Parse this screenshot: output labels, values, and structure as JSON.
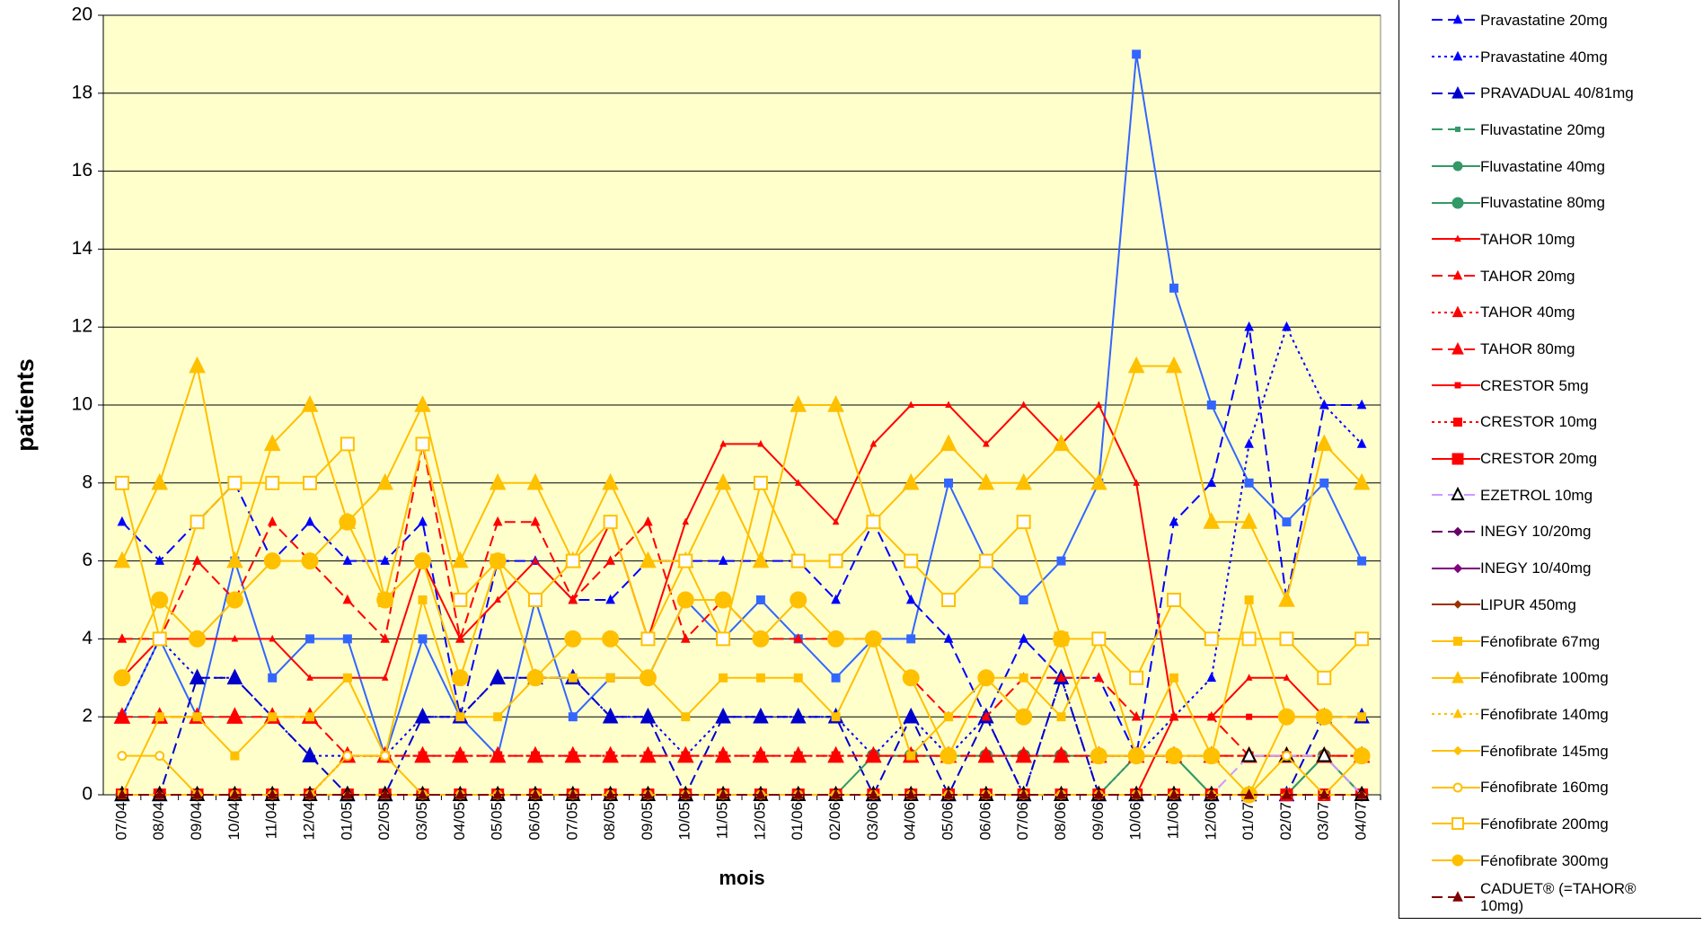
{
  "chart_data": {
    "type": "line",
    "x_label": "mois",
    "y_label": "patients",
    "categories": [
      "07/04",
      "08/04",
      "09/04",
      "10/04",
      "11/04",
      "12/04",
      "01/05",
      "02/05",
      "03/05",
      "04/05",
      "05/05",
      "06/05",
      "07/05",
      "08/05",
      "09/05",
      "10/05",
      "11/05",
      "12/05",
      "01/06",
      "02/06",
      "03/06",
      "04/06",
      "05/06",
      "06/06",
      "07/06",
      "08/06",
      "09/06",
      "10/06",
      "11/06",
      "12/06",
      "01/07",
      "02/07",
      "03/07",
      "04/07"
    ],
    "ylim": [
      0,
      20
    ],
    "yticks": [
      0,
      2,
      4,
      6,
      8,
      10,
      12,
      14,
      16,
      18,
      20
    ],
    "grid": true,
    "series": [
      {
        "name": null,
        "color": "#3366ff",
        "dash": "solid",
        "marker": "square",
        "marker_size": 9,
        "values": [
          2,
          4,
          2,
          6,
          3,
          4,
          4,
          1,
          4,
          2,
          1,
          5,
          2,
          3,
          3,
          5,
          4,
          5,
          4,
          3,
          4,
          4,
          8,
          6,
          5,
          6,
          8,
          19,
          13,
          10,
          8,
          7,
          8,
          6
        ]
      },
      {
        "name": "Pravastatine 20mg",
        "color": "#0000ff",
        "dash": "dash",
        "marker": "triangle",
        "marker_size": 9,
        "values": [
          7,
          6,
          7,
          8,
          6,
          7,
          6,
          6,
          7,
          2,
          6,
          6,
          5,
          5,
          6,
          6,
          6,
          6,
          6,
          5,
          7,
          5,
          4,
          2,
          4,
          3,
          3,
          1,
          7,
          8,
          12,
          5,
          10,
          10
        ]
      },
      {
        "name": "Pravastatine 40mg",
        "color": "#0000ff",
        "dash": "dot",
        "marker": "triangle",
        "marker_size": 9,
        "values": [
          2,
          4,
          3,
          3,
          2,
          1,
          1,
          1,
          2,
          2,
          3,
          3,
          3,
          2,
          2,
          1,
          2,
          2,
          2,
          2,
          1,
          2,
          1,
          2,
          0,
          3,
          0,
          1,
          2,
          3,
          9,
          12,
          10,
          9
        ]
      },
      {
        "name": "PRAVADUAL 40/81mg",
        "color": "#0000cc",
        "dash": "dash",
        "marker": "triangle",
        "marker_size": 16,
        "values": [
          0,
          0,
          3,
          3,
          2,
          1,
          0,
          0,
          2,
          2,
          3,
          3,
          3,
          2,
          2,
          0,
          2,
          2,
          2,
          2,
          0,
          2,
          0,
          2,
          0,
          3,
          0,
          0,
          0,
          0,
          0,
          0,
          2,
          2
        ]
      },
      {
        "name": "Fluvastatine 20mg",
        "color": "#339966",
        "dash": "dash",
        "marker": "dot",
        "marker_size": 5,
        "values": [
          0,
          0,
          0,
          0,
          0,
          0,
          0,
          0,
          0,
          0,
          0,
          0,
          0,
          0,
          0,
          0,
          0,
          0,
          0,
          0,
          0,
          0,
          0,
          0,
          0,
          0,
          0,
          0,
          0,
          0,
          0,
          0,
          0,
          0
        ]
      },
      {
        "name": "Fluvastatine 40mg",
        "color": "#339966",
        "dash": "solid",
        "marker": "circle",
        "marker_size": 10,
        "values": [
          0,
          0,
          0,
          0,
          0,
          0,
          0,
          0,
          0,
          0,
          0,
          0,
          0,
          0,
          0,
          0,
          0,
          0,
          0,
          0,
          0,
          0,
          0,
          0,
          0,
          0,
          0,
          1,
          1,
          0,
          0,
          0,
          1,
          0
        ]
      },
      {
        "name": "Fluvastatine 80mg",
        "color": "#339966",
        "dash": "solid",
        "marker": "circle",
        "marker_size": 14,
        "values": [
          0,
          0,
          0,
          0,
          0,
          0,
          0,
          0,
          0,
          0,
          0,
          0,
          0,
          0,
          0,
          0,
          0,
          0,
          0,
          0,
          1,
          1,
          1,
          1,
          1,
          1,
          1,
          1,
          1,
          0,
          0,
          0,
          1,
          0
        ]
      },
      {
        "name": "TAHOR 10mg",
        "color": "#ff0000",
        "dash": "solid",
        "marker": "triangle",
        "marker_size": 6,
        "values": [
          3,
          4,
          4,
          4,
          4,
          3,
          3,
          3,
          6,
          4,
          5,
          6,
          5,
          7,
          4,
          7,
          9,
          9,
          8,
          7,
          9,
          10,
          10,
          9,
          10,
          9,
          10,
          8,
          2,
          2,
          3,
          3,
          2,
          1
        ]
      },
      {
        "name": "TAHOR 20mg",
        "color": "#ff0000",
        "dash": "dash",
        "marker": "triangle",
        "marker_size": 9,
        "values": [
          4,
          4,
          6,
          5,
          7,
          6,
          5,
          4,
          9,
          4,
          7,
          7,
          5,
          6,
          7,
          4,
          5,
          4,
          4,
          4,
          4,
          3,
          2,
          2,
          3,
          3,
          3,
          2,
          2,
          2,
          1,
          1,
          1,
          1
        ]
      },
      {
        "name": "TAHOR 40mg",
        "color": "#ff0000",
        "dash": "dot",
        "marker": "triangle",
        "marker_size": 11,
        "values": [
          0,
          0,
          0,
          0,
          0,
          0,
          1,
          1,
          1,
          1,
          1,
          1,
          1,
          1,
          1,
          1,
          1,
          1,
          1,
          1,
          1,
          1,
          1,
          1,
          1,
          1,
          1,
          1,
          1,
          1,
          1,
          1,
          1,
          1
        ]
      },
      {
        "name": "TAHOR 80mg",
        "color": "#ff0000",
        "dash": "dash",
        "marker": "triangle",
        "marker_size": 17,
        "values": [
          2,
          2,
          2,
          2,
          2,
          2,
          1,
          1,
          1,
          1,
          1,
          1,
          1,
          1,
          1,
          1,
          1,
          1,
          1,
          1,
          1,
          1,
          1,
          1,
          1,
          1,
          1,
          1,
          1,
          1,
          1,
          1,
          1,
          1
        ]
      },
      {
        "name": "CRESTOR 5mg",
        "color": "#ff0000",
        "dash": "solid",
        "marker": "square",
        "marker_size": 6,
        "values": [
          0,
          0,
          0,
          0,
          0,
          0,
          0,
          0,
          0,
          0,
          0,
          0,
          0,
          0,
          0,
          0,
          0,
          0,
          0,
          0,
          0,
          0,
          0,
          0,
          0,
          0,
          0,
          0,
          2,
          2,
          2,
          2,
          2,
          1
        ]
      },
      {
        "name": "CRESTOR 10mg",
        "color": "#ff0000",
        "dash": "dot",
        "marker": "square",
        "marker_size": 9,
        "values": [
          0,
          0,
          0,
          0,
          0,
          0,
          1,
          1,
          1,
          1,
          1,
          1,
          1,
          1,
          1,
          1,
          1,
          1,
          1,
          1,
          1,
          1,
          1,
          1,
          1,
          1,
          1,
          1,
          1,
          1,
          1,
          1,
          1,
          1
        ]
      },
      {
        "name": "CRESTOR 20mg",
        "color": "#ff0000",
        "dash": "solid",
        "marker": "square",
        "marker_size": 13,
        "values": [
          0,
          0,
          0,
          0,
          0,
          0,
          0,
          0,
          0,
          0,
          0,
          0,
          0,
          0,
          0,
          0,
          0,
          0,
          0,
          0,
          0,
          0,
          0,
          0,
          0,
          0,
          0,
          0,
          0,
          0,
          0,
          0,
          0,
          0
        ]
      },
      {
        "name": "EZETROL 10mg",
        "color": "#cc99ff",
        "marker_color": "#000000",
        "open": true,
        "dash": "dash",
        "marker": "triangle",
        "marker_size": 14,
        "values": [
          0,
          0,
          0,
          0,
          0,
          0,
          0,
          0,
          0,
          0,
          0,
          0,
          0,
          0,
          0,
          0,
          0,
          0,
          0,
          0,
          0,
          0,
          0,
          0,
          0,
          0,
          0,
          0,
          0,
          0,
          1,
          1,
          1,
          0
        ]
      },
      {
        "name": "INEGY 10/20mg",
        "color": "#660066",
        "dash": "dash",
        "marker": "diamond",
        "marker_size": 9,
        "values": [
          0,
          0,
          0,
          0,
          0,
          0,
          0,
          0,
          0,
          0,
          0,
          0,
          0,
          0,
          0,
          0,
          0,
          0,
          0,
          0,
          0,
          0,
          0,
          0,
          0,
          0,
          0,
          0,
          0,
          0,
          0,
          0,
          0,
          0
        ]
      },
      {
        "name": "INEGY 10/40mg",
        "color": "#800080",
        "dash": "solid",
        "marker": "diamond",
        "marker_size": 9,
        "values": [
          0,
          0,
          0,
          0,
          0,
          0,
          0,
          0,
          0,
          0,
          0,
          0,
          0,
          0,
          0,
          0,
          0,
          0,
          0,
          0,
          0,
          0,
          0,
          0,
          0,
          0,
          0,
          0,
          0,
          0,
          0,
          0,
          0,
          0
        ]
      },
      {
        "name": "LIPUR 450mg",
        "color": "#993300",
        "dash": "solid",
        "marker": "diamond",
        "marker_size": 8,
        "values": [
          0,
          0,
          0,
          0,
          0,
          0,
          0,
          0,
          0,
          0,
          0,
          0,
          0,
          0,
          0,
          0,
          0,
          0,
          0,
          0,
          0,
          0,
          0,
          0,
          0,
          0,
          0,
          0,
          0,
          0,
          0,
          0,
          0,
          0
        ]
      },
      {
        "name": "Fénofibrate 67mg",
        "color": "#ffc000",
        "dash": "solid",
        "marker": "square",
        "marker_size": 9,
        "values": [
          0,
          2,
          2,
          1,
          2,
          2,
          3,
          1,
          5,
          2,
          2,
          3,
          3,
          3,
          3,
          2,
          3,
          3,
          3,
          2,
          4,
          1,
          2,
          3,
          3,
          2,
          4,
          1,
          3,
          1,
          5,
          2,
          2,
          2
        ]
      },
      {
        "name": "Fénofibrate 100mg",
        "color": "#ffc000",
        "dash": "solid",
        "marker": "triangle",
        "marker_size": 17,
        "values": [
          6,
          8,
          11,
          6,
          9,
          10,
          7,
          8,
          10,
          6,
          8,
          8,
          6,
          8,
          6,
          6,
          8,
          6,
          10,
          10,
          7,
          8,
          9,
          8,
          8,
          9,
          8,
          11,
          11,
          7,
          7,
          5,
          9,
          8
        ]
      },
      {
        "name": "Fénofibrate 140mg",
        "color": "#ffc000",
        "dash": "dot",
        "marker": "triangle",
        "marker_size": 9,
        "values": [
          0,
          0,
          0,
          0,
          0,
          0,
          0,
          0,
          0,
          0,
          0,
          0,
          0,
          0,
          0,
          0,
          0,
          0,
          0,
          0,
          0,
          0,
          0,
          0,
          0,
          0,
          0,
          0,
          0,
          0,
          0,
          0,
          0,
          0
        ]
      },
      {
        "name": "Fénofibrate 145mg",
        "color": "#ffc000",
        "dash": "solid",
        "marker": "diamond",
        "marker_size": 9,
        "values": [
          0,
          0,
          0,
          0,
          0,
          0,
          0,
          0,
          0,
          0,
          0,
          0,
          0,
          0,
          0,
          0,
          0,
          0,
          0,
          0,
          0,
          0,
          0,
          0,
          0,
          0,
          0,
          0,
          0,
          0,
          0,
          0,
          0,
          0
        ]
      },
      {
        "name": "Fénofibrate 160mg",
        "color": "#ffc000",
        "open": true,
        "dash": "solid",
        "marker": "circle",
        "marker_size": 9,
        "values": [
          1,
          1,
          0,
          0,
          0,
          0,
          1,
          1,
          0,
          0,
          0,
          0,
          0,
          0,
          0,
          0,
          0,
          0,
          0,
          0,
          0,
          0,
          0,
          0,
          0,
          0,
          0,
          0,
          0,
          0,
          0,
          1,
          0,
          1
        ]
      },
      {
        "name": "Fénofibrate 200mg",
        "color": "#ffc000",
        "open": true,
        "dash": "solid",
        "marker": "square",
        "marker_size": 14,
        "values": [
          8,
          4,
          7,
          8,
          8,
          8,
          9,
          5,
          9,
          5,
          6,
          5,
          6,
          7,
          4,
          6,
          4,
          8,
          6,
          6,
          7,
          6,
          5,
          6,
          7,
          4,
          4,
          3,
          5,
          4,
          4,
          4,
          3,
          4
        ]
      },
      {
        "name": "Fénofibrate 300mg",
        "color": "#ffc000",
        "dash": "solid",
        "marker": "circle",
        "marker_size": 18,
        "values": [
          3,
          5,
          4,
          5,
          6,
          6,
          7,
          5,
          6,
          3,
          6,
          3,
          4,
          4,
          3,
          5,
          5,
          4,
          5,
          4,
          4,
          3,
          1,
          3,
          2,
          4,
          1,
          1,
          1,
          1,
          0,
          2,
          2,
          1
        ]
      },
      {
        "name": "CADUET® (=TAHOR® 10mg)",
        "color": "#800000",
        "dash": "dash",
        "marker": "triangle",
        "marker_size": 10,
        "values": [
          0,
          0,
          0,
          0,
          0,
          0,
          0,
          0,
          0,
          0,
          0,
          0,
          0,
          0,
          0,
          0,
          0,
          0,
          0,
          0,
          0,
          0,
          0,
          0,
          0,
          0,
          0,
          0,
          0,
          0,
          0,
          0,
          0,
          0
        ]
      }
    ]
  }
}
